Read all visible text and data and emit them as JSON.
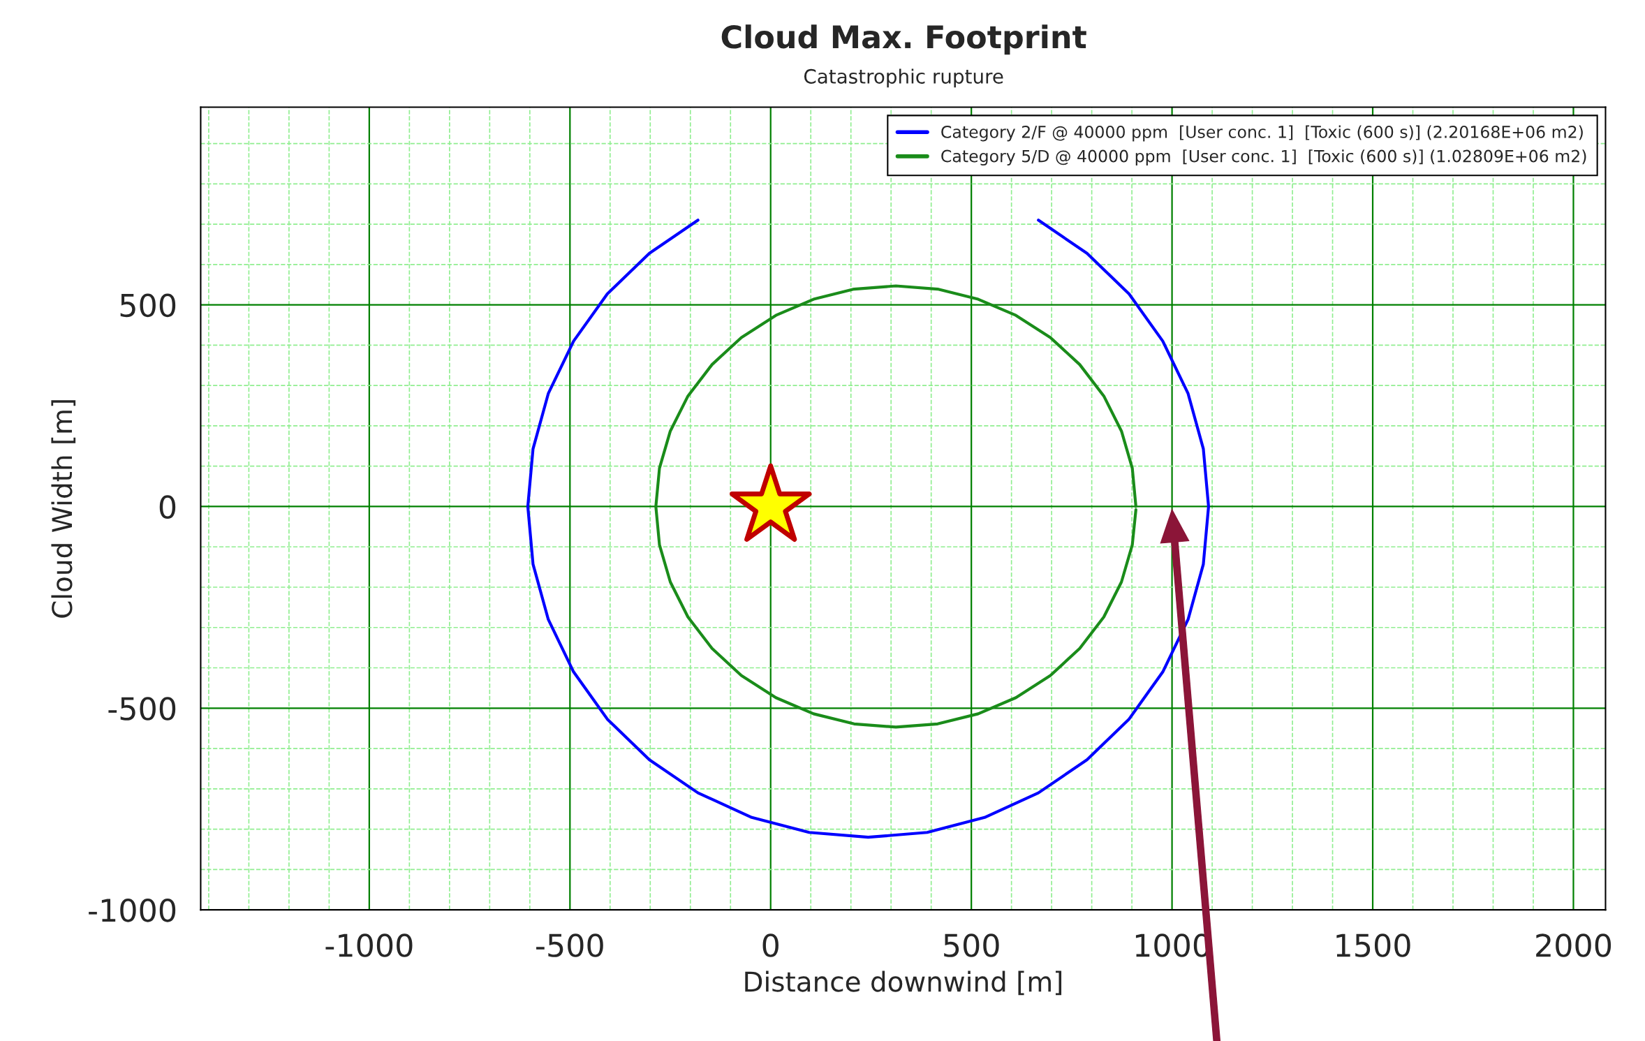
{
  "chart_data": {
    "type": "line",
    "title": "Cloud Max. Footprint",
    "subtitle": "Catastrophic rupture",
    "xlabel": "Distance downwind [m]",
    "ylabel": "Cloud Width [m]",
    "xlim": [
      -1420,
      2080
    ],
    "ylim": [
      -1000,
      990
    ],
    "xticks": [
      {
        "value": -1400,
        "label": null
      },
      {
        "value": -1300,
        "label": null
      },
      {
        "value": -1200,
        "label": null
      },
      {
        "value": -1100,
        "label": null
      },
      -1000,
      {
        "value": -900,
        "label": null
      },
      {
        "value": -800,
        "label": null
      },
      {
        "value": -700,
        "label": null
      },
      {
        "value": -600,
        "label": null
      },
      -500,
      {
        "value": -400,
        "label": null
      },
      {
        "value": -300,
        "label": null
      },
      {
        "value": -200,
        "label": null
      },
      {
        "value": -100,
        "label": null
      },
      0,
      {
        "value": 100,
        "label": null
      },
      {
        "value": 200,
        "label": null
      },
      {
        "value": 300,
        "label": null
      },
      {
        "value": 400,
        "label": null
      },
      500,
      {
        "value": 600,
        "label": null
      },
      {
        "value": 700,
        "label": null
      },
      {
        "value": 800,
        "label": null
      },
      {
        "value": 900,
        "label": null
      },
      1000,
      {
        "value": 1100,
        "label": null
      },
      {
        "value": 1200,
        "label": null
      },
      {
        "value": 1300,
        "label": null
      },
      {
        "value": 1400,
        "label": null
      },
      1500,
      {
        "value": 1600,
        "label": null
      },
      {
        "value": 1700,
        "label": null
      },
      {
        "value": 1800,
        "label": null
      },
      {
        "value": 1900,
        "label": null
      },
      2000
    ],
    "yticks": [
      -1000,
      {
        "value": -900,
        "label": null
      },
      {
        "value": -800,
        "label": null
      },
      {
        "value": -700,
        "label": null
      },
      {
        "value": -600,
        "label": null
      },
      -500,
      {
        "value": -400,
        "label": null
      },
      {
        "value": -300,
        "label": null
      },
      {
        "value": -200,
        "label": null
      },
      {
        "value": -100,
        "label": null
      },
      0,
      {
        "value": 100,
        "label": null
      },
      {
        "value": 200,
        "label": null
      },
      {
        "value": 300,
        "label": null
      },
      {
        "value": 400,
        "label": null
      },
      500,
      {
        "value": 600,
        "label": null
      },
      {
        "value": 700,
        "label": null
      },
      {
        "value": 800,
        "label": null
      },
      {
        "value": 900,
        "label": null
      }
    ],
    "grid": true,
    "legend": "top right",
    "marker": "none",
    "line_style": "solid",
    "series": [
      {
        "name": "Category 2/F @ 40000 ppm  [User conc. 1]  [Toxic (600 s)] (2.20168E+06 m2)",
        "color": "#0000ff",
        "x": [
          1091,
          1078,
          1040,
          977,
          893,
          788,
          667,
          533,
          390,
          243,
          96,
          -47,
          -181,
          -302,
          -407,
          -491,
          -554,
          -592,
          -605,
          -592,
          -554,
          -491,
          -407,
          -302,
          -181,
          -47,
          96,
          243,
          390,
          533,
          667,
          788,
          893,
          977,
          1040,
          1078,
          1091
        ],
        "values": [
          0,
          143,
          280,
          410,
          527,
          628,
          710,
          null,
          null,
          null,
          null,
          null,
          710,
          628,
          527,
          410,
          280,
          143,
          0,
          -143,
          -280,
          -410,
          -527,
          -628,
          -710,
          -771,
          -808,
          -820,
          -808,
          -771,
          -710,
          -628,
          -527,
          -410,
          -280,
          -143,
          0
        ]
      },
      {
        "name": "Category 5/D @ 40000 ppm  [User conc. 1]  [Toxic (600 s)] (1.02809E+06 m2)",
        "color": "#1a8c1a",
        "x": [
          910,
          901,
          874,
          830,
          770,
          697,
          611,
          517,
          416,
          312,
          208,
          107,
          13,
          -73,
          -146,
          -206,
          -250,
          -277,
          -286,
          -277,
          -250,
          -206,
          -146,
          -73,
          13,
          107,
          208,
          312,
          416,
          517,
          611,
          697,
          770,
          830,
          874,
          901,
          910
        ],
        "values": [
          0,
          95,
          187,
          274,
          352,
          419,
          474,
          514,
          539,
          547,
          539,
          514,
          474,
          419,
          352,
          274,
          187,
          95,
          0,
          -95,
          -187,
          -274,
          -352,
          -419,
          -474,
          -514,
          -539,
          -547,
          -539,
          -514,
          -474,
          -419,
          -352,
          -274,
          -187,
          -95,
          -8
        ]
      },
      {
        "type": "scatter",
        "marker": "star",
        "color": "#ffff00",
        "x": [
          0
        ],
        "values": [
          0
        ]
      }
    ]
  }
}
